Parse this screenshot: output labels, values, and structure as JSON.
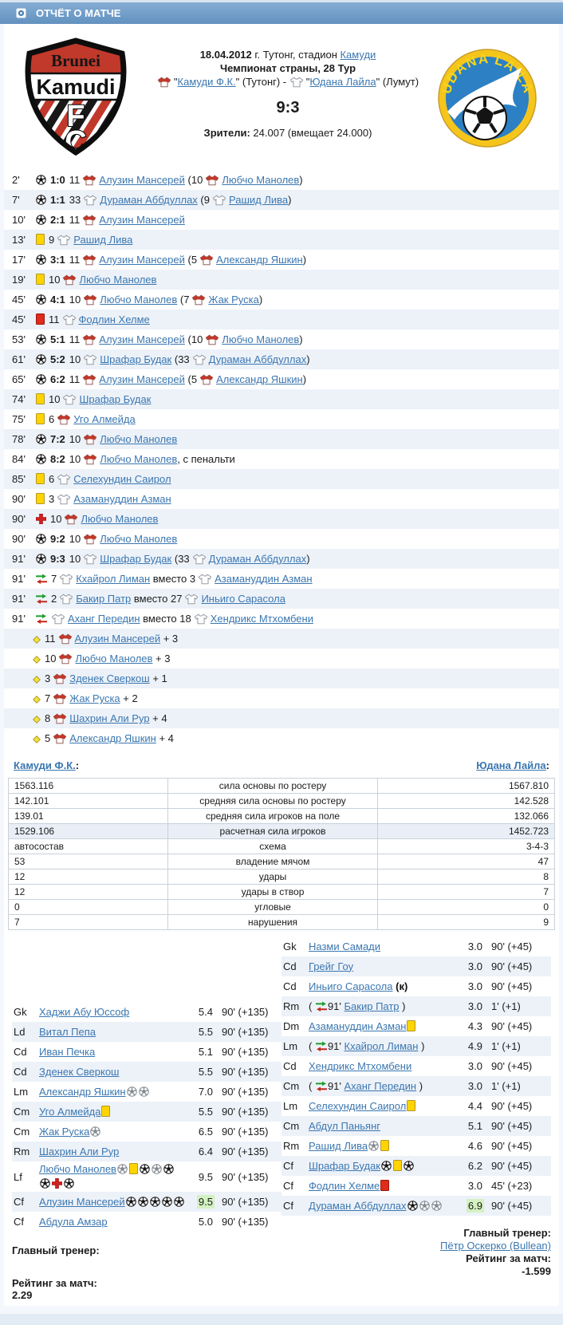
{
  "title_bar": {
    "label": "ОТЧЁТ О МАТЧЕ"
  },
  "header": {
    "date": "18.04.2012",
    "location_text": " г. Тутонг, стадион ",
    "stadium": "Камуди",
    "tournament": "Чемпионат страны, 28 Тур",
    "teams": {
      "quote": "\"",
      "home_name": "Камуди Ф.К.",
      "home_after": " (Тутонг) - ",
      "away_name": "Юдана Лайла",
      "away_after": " (Лумут)"
    },
    "score": "9:3",
    "attendance_label": "Зрители:",
    "attendance_value": " 24.007 (вмещает 24.000)"
  },
  "logos": {
    "home_lines": [
      "Brunei",
      "Kamudi",
      "F",
      "C"
    ],
    "away_text": "UDANA LAILA"
  },
  "events": {
    "substitute_word": "вместо",
    "rows": [
      {
        "m": "2'",
        "t": "goal",
        "score": "1:0",
        "p": {
          "n": "11",
          "tm": "h",
          "name": "Алузин Мансерей"
        },
        "a": {
          "n": "10",
          "tm": "h",
          "name": "Любчо Манолев"
        }
      },
      {
        "m": "7'",
        "t": "goal",
        "score": "1:1",
        "p": {
          "n": "33",
          "tm": "a",
          "name": "Дураман Аббдуллах"
        },
        "a": {
          "n": "9",
          "tm": "a",
          "name": "Рашид Лива"
        }
      },
      {
        "m": "10'",
        "t": "goal",
        "score": "2:1",
        "p": {
          "n": "11",
          "tm": "h",
          "name": "Алузин Мансерей"
        }
      },
      {
        "m": "13'",
        "t": "yellow",
        "p": {
          "n": "9",
          "tm": "a",
          "name": "Рашид Лива"
        }
      },
      {
        "m": "17'",
        "t": "goal",
        "score": "3:1",
        "p": {
          "n": "11",
          "tm": "h",
          "name": "Алузин Мансерей"
        },
        "a": {
          "n": "5",
          "tm": "h",
          "name": "Александр Яшкин"
        }
      },
      {
        "m": "19'",
        "t": "yellow",
        "p": {
          "n": "10",
          "tm": "h",
          "name": "Любчо Манолев"
        }
      },
      {
        "m": "45'",
        "t": "goal",
        "score": "4:1",
        "p": {
          "n": "10",
          "tm": "h",
          "name": "Любчо Манолев"
        },
        "a": {
          "n": "7",
          "tm": "h",
          "name": "Жак Руска"
        }
      },
      {
        "m": "45'",
        "t": "red",
        "p": {
          "n": "11",
          "tm": "a",
          "name": "Фодлин Хелме"
        }
      },
      {
        "m": "53'",
        "t": "goal",
        "score": "5:1",
        "p": {
          "n": "11",
          "tm": "h",
          "name": "Алузин Мансерей"
        },
        "a": {
          "n": "10",
          "tm": "h",
          "name": "Любчо Манолев"
        }
      },
      {
        "m": "61'",
        "t": "goal",
        "score": "5:2",
        "p": {
          "n": "10",
          "tm": "a",
          "name": "Шрафар Будак"
        },
        "a": {
          "n": "33",
          "tm": "a",
          "name": "Дураман Аббдуллах"
        }
      },
      {
        "m": "65'",
        "t": "goal",
        "score": "6:2",
        "p": {
          "n": "11",
          "tm": "h",
          "name": "Алузин Мансерей"
        },
        "a": {
          "n": "5",
          "tm": "h",
          "name": "Александр Яшкин"
        }
      },
      {
        "m": "74'",
        "t": "yellow",
        "p": {
          "n": "10",
          "tm": "a",
          "name": "Шрафар Будак"
        }
      },
      {
        "m": "75'",
        "t": "yellow",
        "p": {
          "n": "6",
          "tm": "h",
          "name": "Уго Алмейда"
        }
      },
      {
        "m": "78'",
        "t": "goal",
        "score": "7:2",
        "p": {
          "n": "10",
          "tm": "h",
          "name": "Любчо Манолев"
        }
      },
      {
        "m": "84'",
        "t": "goal",
        "score": "8:2",
        "p": {
          "n": "10",
          "tm": "h",
          "name": "Любчо Манолев"
        },
        "note": ", с пенальти"
      },
      {
        "m": "85'",
        "t": "yellow",
        "p": {
          "n": "6",
          "tm": "a",
          "name": "Селехундин Саирол"
        }
      },
      {
        "m": "90'",
        "t": "yellow",
        "p": {
          "n": "3",
          "tm": "a",
          "name": "Азамануддин Азман"
        }
      },
      {
        "m": "90'",
        "t": "injury",
        "p": {
          "n": "10",
          "tm": "h",
          "name": "Любчо Манолев"
        }
      },
      {
        "m": "90'",
        "t": "goal",
        "score": "9:2",
        "p": {
          "n": "10",
          "tm": "h",
          "name": "Любчо Манолев"
        }
      },
      {
        "m": "91'",
        "t": "goal",
        "score": "9:3",
        "p": {
          "n": "10",
          "tm": "a",
          "name": "Шрафар Будак"
        },
        "a": {
          "n": "33",
          "tm": "a",
          "name": "Дураман Аббдуллах"
        }
      },
      {
        "m": "91'",
        "t": "sub",
        "in": {
          "n": "7",
          "tm": "a",
          "name": "Кхайрол Лиман"
        },
        "out": {
          "n": "3",
          "tm": "a",
          "name": "Азамануддин Азман"
        }
      },
      {
        "m": "91'",
        "t": "sub",
        "in": {
          "n": "2",
          "tm": "a",
          "name": "Бакир Патр"
        },
        "out": {
          "n": "27",
          "tm": "a",
          "name": "Иньиго Сарасола"
        }
      },
      {
        "m": "91'",
        "t": "sub",
        "in": {
          "n": "",
          "tm": "a",
          "name": "Аханг Передин"
        },
        "out": {
          "n": "18",
          "tm": "a",
          "name": "Хендрикс Мтхомбени"
        }
      }
    ]
  },
  "bonuses": [
    {
      "n": "11",
      "tm": "h",
      "name": "Алузин Мансерей",
      "v": "+ 3"
    },
    {
      "n": "10",
      "tm": "h",
      "name": "Любчо Манолев",
      "v": "+ 3"
    },
    {
      "n": "3",
      "tm": "h",
      "name": "Зденек Сверкош",
      "v": "+ 1"
    },
    {
      "n": "7",
      "tm": "h",
      "name": "Жак Руска",
      "v": "+ 2"
    },
    {
      "n": "8",
      "tm": "h",
      "name": "Шахрин Али Рур",
      "v": "+ 4"
    },
    {
      "n": "5",
      "tm": "h",
      "name": "Александр Яшкин",
      "v": "+ 4"
    }
  ],
  "stats": {
    "home_team": "Камуди Ф.К.",
    "away_team": "Юдана Лайла",
    "colon": ":",
    "rows": [
      {
        "home": "1563.116",
        "label": "сила основы по ростеру",
        "away": "1567.810",
        "highlight": false
      },
      {
        "home": "142.101",
        "label": "средняя сила основы по ростеру",
        "away": "142.528",
        "highlight": false
      },
      {
        "home": "139.01",
        "label": "средняя сила игроков на поле",
        "away": "132.066",
        "highlight": false
      },
      {
        "home": "1529.106",
        "label": "расчетная сила игроков",
        "away": "1452.723",
        "highlight": true
      },
      {
        "home": "автосостав",
        "label": "схема",
        "away": "3-4-3",
        "highlight": false
      },
      {
        "home": "53",
        "label": "владение мячом",
        "away": "47",
        "highlight": false
      },
      {
        "home": "12",
        "label": "удары",
        "away": "8",
        "highlight": false
      },
      {
        "home": "12",
        "label": "удары в створ",
        "away": "7",
        "highlight": false
      },
      {
        "home": "0",
        "label": "угловые",
        "away": "0",
        "highlight": false
      },
      {
        "home": "7",
        "label": "нарушения",
        "away": "9",
        "highlight": false
      }
    ]
  },
  "lineups": {
    "captain_mark": "(к)",
    "home": [
      {
        "pos": "Gk",
        "name": "Хаджи Абу Юссоф",
        "icons": [],
        "r": "5.4",
        "time": "90' (+135)"
      },
      {
        "pos": "Ld",
        "name": "Витал Пепа",
        "icons": [],
        "r": "5.5",
        "time": "90' (+135)"
      },
      {
        "pos": "Cd",
        "name": "Иван Печка",
        "icons": [],
        "r": "5.1",
        "time": "90' (+135)"
      },
      {
        "pos": "Cd",
        "name": "Зденек Сверкош",
        "icons": [],
        "r": "5.5",
        "time": "90' (+135)"
      },
      {
        "pos": "Lm",
        "name": "Александр Яшкин",
        "icons": [
          "assist",
          "assist"
        ],
        "r": "7.0",
        "time": "90' (+135)"
      },
      {
        "pos": "Cm",
        "name": "Уго Алмейда",
        "icons": [
          "yellow"
        ],
        "r": "5.5",
        "time": "90' (+135)"
      },
      {
        "pos": "Cm",
        "name": "Жак Руска",
        "icons": [
          "assist"
        ],
        "r": "6.5",
        "time": "90' (+135)"
      },
      {
        "pos": "Rm",
        "name": "Шахрин Али Рур",
        "icons": [],
        "r": "6.4",
        "time": "90' (+135)"
      },
      {
        "pos": "Lf",
        "name": "Любчо Манолев",
        "icons": [
          "assist",
          "yellow",
          "goal",
          "assist",
          "goal",
          "goal",
          "injury",
          "goal"
        ],
        "r": "9.5",
        "time": "90' (+135)"
      },
      {
        "pos": "Cf",
        "name": "Алузин Мансерей",
        "icons": [
          "goal",
          "goal",
          "goal",
          "goal",
          "goal"
        ],
        "r": "9.5",
        "hl": true,
        "time": "90' (+135)"
      },
      {
        "pos": "Cf",
        "name": "Абдула Амзар",
        "icons": [],
        "r": "5.0",
        "time": "90' (+135)"
      }
    ],
    "away": [
      {
        "pos": "Gk",
        "name": "Назми Самади",
        "icons": [],
        "r": "3.0",
        "time": "90' (+45)"
      },
      {
        "pos": "Cd",
        "name": "Грейг Гоу",
        "icons": [],
        "r": "3.0",
        "time": "90' (+45)"
      },
      {
        "pos": "Cd",
        "name": "Иньиго Сарасола",
        "cap": true,
        "icons": [],
        "r": "3.0",
        "time": "90' (+45)"
      },
      {
        "pos": "Rm",
        "sub": "91'",
        "name": "Бакир Патр",
        "icons": [],
        "r": "3.0",
        "time": "1' (+1)"
      },
      {
        "pos": "Dm",
        "name": "Азамануддин Азман",
        "icons": [
          "yellow"
        ],
        "r": "4.3",
        "time": "90' (+45)"
      },
      {
        "pos": "Lm",
        "sub": "91'",
        "name": "Кхайрол Лиман",
        "icons": [],
        "r": "4.9",
        "time": "1' (+1)"
      },
      {
        "pos": "Cd",
        "name": "Хендрикс Мтхомбени",
        "icons": [],
        "r": "3.0",
        "time": "90' (+45)"
      },
      {
        "pos": "Cm",
        "sub": "91'",
        "name": "Аханг Передин",
        "icons": [],
        "r": "3.0",
        "time": "1' (+1)"
      },
      {
        "pos": "Lm",
        "name": "Селехундин Саирол",
        "icons": [
          "yellow"
        ],
        "r": "4.4",
        "time": "90' (+45)"
      },
      {
        "pos": "Cm",
        "name": "Абдул Паньянг",
        "icons": [],
        "r": "5.1",
        "time": "90' (+45)"
      },
      {
        "pos": "Rm",
        "name": "Рашид Лива",
        "icons": [
          "assist",
          "yellow"
        ],
        "r": "4.6",
        "time": "90' (+45)"
      },
      {
        "pos": "Cf",
        "name": "Шрафар Будак",
        "icons": [
          "goal",
          "yellow",
          "goal"
        ],
        "r": "6.2",
        "time": "90' (+45)"
      },
      {
        "pos": "Cf",
        "name": "Фодлин Хелме",
        "icons": [
          "red"
        ],
        "r": "3.0",
        "time": "45' (+23)"
      },
      {
        "pos": "Cf",
        "name": "Дураман Аббдуллах",
        "icons": [
          "goal",
          "assist",
          "assist"
        ],
        "r": "6.9",
        "hl": true,
        "time": "90' (+45)"
      }
    ]
  },
  "footers": {
    "home": {
      "coach_label": "Главный тренер:",
      "coach_name": "",
      "rating_label": "Рейтинг за матч:",
      "rating_value": "2.29"
    },
    "away": {
      "coach_label": "Главный тренер:",
      "coach_name": "Пётр Оскерко (Bullean)",
      "rating_label": "Рейтинг за матч:",
      "rating_value": "-1.599"
    }
  },
  "colors": {
    "title_bar": "#6f9fc9",
    "link": "#3b77b0",
    "row_alt": "#edf2f9",
    "rating_highlight": "#d4f1c2",
    "yellow_card": "#ffd400",
    "red_card": "#df2c1c",
    "sub_in": "#1f9e2e",
    "sub_out": "#c32a1f",
    "injury_cross": "#cf1f1f",
    "bonus_diamond": "#f3e03b"
  }
}
